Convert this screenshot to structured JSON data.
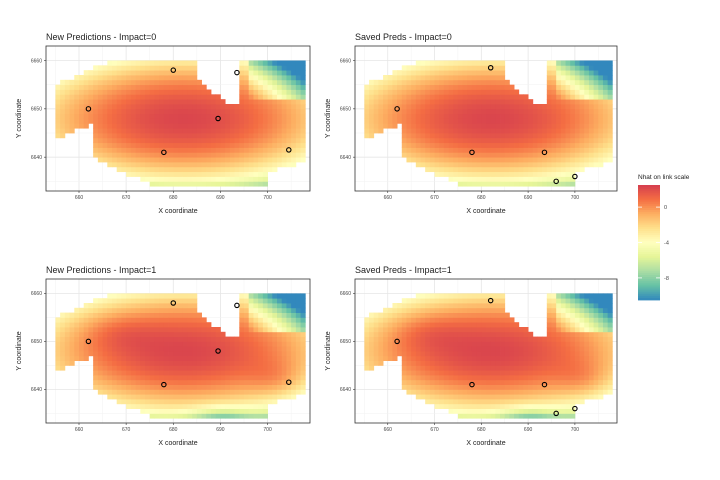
{
  "chart_data": [
    {
      "type": "heatmap",
      "title": "New Predictions - Impact=0",
      "xlabel": "X coordinate",
      "ylabel": "Y coordinate",
      "xlim": [
        653,
        709
      ],
      "ylim": [
        6633,
        6363
      ],
      "xticks": [
        660,
        670,
        680,
        690,
        700
      ],
      "yticks": [
        6640,
        6650,
        6660
      ],
      "grid": true,
      "impact": 0,
      "points": [
        {
          "x": 662,
          "y": 6650
        },
        {
          "x": 680,
          "y": 6658
        },
        {
          "x": 678,
          "y": 6641
        },
        {
          "x": 689.5,
          "y": 6648
        },
        {
          "x": 693.5,
          "y": 6657.5
        },
        {
          "x": 704.5,
          "y": 6641.5
        }
      ]
    },
    {
      "type": "heatmap",
      "title": "Saved Preds - Impact=0",
      "xlabel": "X coordinate",
      "ylabel": "Y coordinate",
      "xlim": [
        653,
        709
      ],
      "ylim": [
        6633,
        6363
      ],
      "xticks": [
        660,
        670,
        680,
        690,
        700
      ],
      "yticks": [
        6640,
        6650,
        6660
      ],
      "grid": true,
      "impact": 0,
      "points": [
        {
          "x": 662,
          "y": 6650
        },
        {
          "x": 682,
          "y": 6658.5
        },
        {
          "x": 678,
          "y": 6641
        },
        {
          "x": 693.5,
          "y": 6641
        },
        {
          "x": 696,
          "y": 6635
        },
        {
          "x": 700,
          "y": 6636
        }
      ]
    },
    {
      "type": "heatmap",
      "title": "New Predictions - Impact=1",
      "xlabel": "X coordinate",
      "ylabel": "Y coordinate",
      "xlim": [
        653,
        709
      ],
      "ylim": [
        6633,
        6363
      ],
      "xticks": [
        660,
        670,
        680,
        690,
        700
      ],
      "yticks": [
        6640,
        6650,
        6660
      ],
      "grid": true,
      "impact": 1,
      "points": [
        {
          "x": 662,
          "y": 6650
        },
        {
          "x": 680,
          "y": 6658
        },
        {
          "x": 678,
          "y": 6641
        },
        {
          "x": 689.5,
          "y": 6648
        },
        {
          "x": 693.5,
          "y": 6657.5
        },
        {
          "x": 704.5,
          "y": 6641.5
        }
      ]
    },
    {
      "type": "heatmap",
      "title": "Saved Preds - Impact=1",
      "xlabel": "X coordinate",
      "ylabel": "Y coordinate",
      "xlim": [
        653,
        709
      ],
      "ylim": [
        6633,
        6363
      ],
      "xticks": [
        660,
        670,
        680,
        690,
        700
      ],
      "yticks": [
        6640,
        6650,
        6660
      ],
      "grid": true,
      "impact": 1,
      "points": [
        {
          "x": 662,
          "y": 6650
        },
        {
          "x": 682,
          "y": 6658.5
        },
        {
          "x": 678,
          "y": 6641
        },
        {
          "x": 693.5,
          "y": 6641
        },
        {
          "x": 696,
          "y": 6635
        },
        {
          "x": 700,
          "y": 6636
        }
      ]
    }
  ],
  "legend": {
    "title": "Nhat on link scale",
    "ticks": [
      0,
      -4,
      -8
    ],
    "range": [
      -10.5,
      2.5
    ],
    "placement": "right",
    "colors": [
      "#d53e4f",
      "#f46d43",
      "#fdae61",
      "#fee08b",
      "#ffffbf",
      "#e6f598",
      "#abdda4",
      "#66c2a5",
      "#3288bd"
    ]
  }
}
